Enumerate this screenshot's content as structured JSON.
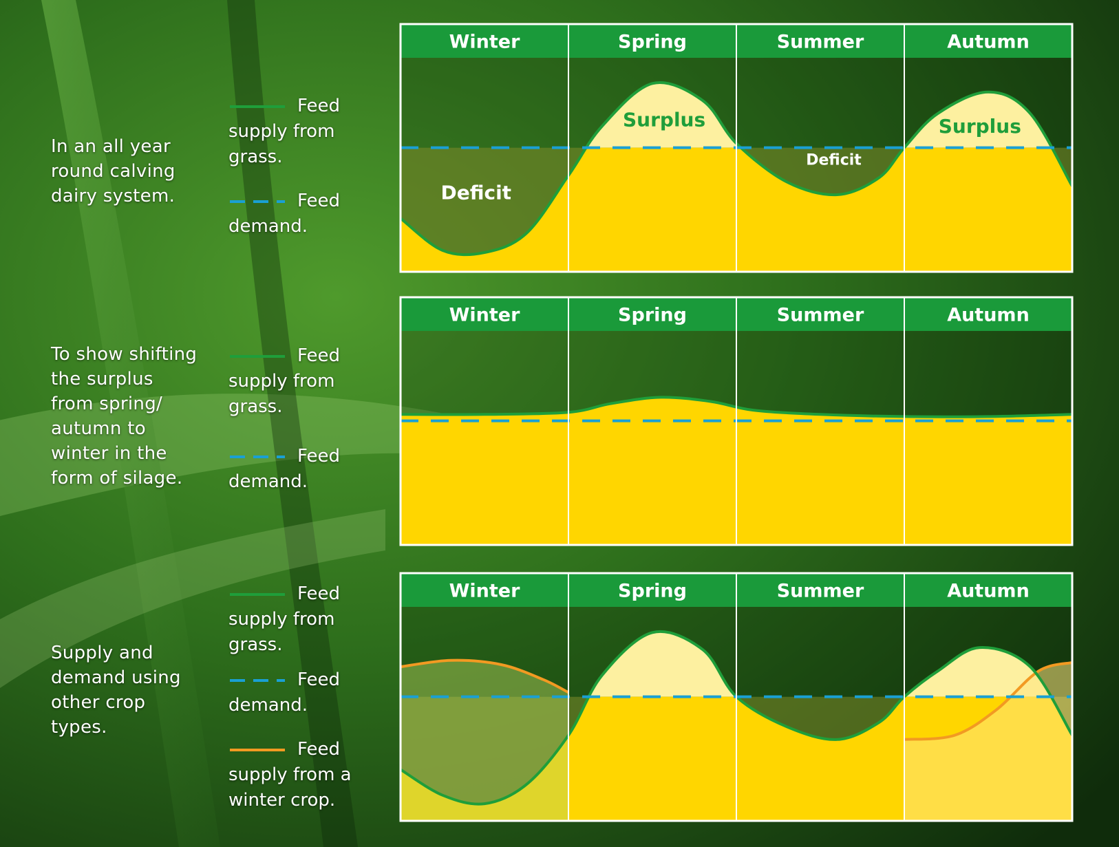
{
  "colors": {
    "header_green": "#1a9a3a",
    "supply_line": "#1f9e3a",
    "demand_line": "#1aa0d4",
    "winter_crop_line": "#f29a22",
    "fill_yellow": "#ffd600",
    "surplus_fill": "#fdf0a0",
    "frame": "#ffffff"
  },
  "rows": [
    {
      "description": [
        "In an all year",
        "round calving",
        "dairy system."
      ],
      "legend": [
        {
          "style": "solid-green",
          "lines": [
            "Feed",
            "supply from",
            "grass."
          ]
        },
        {
          "style": "dash-blue",
          "lines": [
            "Feed",
            "demand."
          ]
        }
      ]
    },
    {
      "description": [
        "To show shifting",
        "the surplus",
        "from spring/",
        "autumn to",
        "winter in the",
        "form of silage."
      ],
      "legend": [
        {
          "style": "solid-green",
          "lines": [
            "Feed",
            "supply from",
            "grass."
          ]
        },
        {
          "style": "dash-blue",
          "lines": [
            "Feed",
            "demand."
          ]
        }
      ]
    },
    {
      "description": [
        "Supply and",
        "demand using",
        "other crop",
        "types."
      ],
      "legend": [
        {
          "style": "solid-green",
          "lines": [
            "Feed",
            "supply from",
            "grass."
          ]
        },
        {
          "style": "dash-blue",
          "lines": [
            "Feed",
            "demand."
          ]
        },
        {
          "style": "solid-orange",
          "lines": [
            "Feed",
            "supply from a",
            "winter crop."
          ]
        }
      ]
    }
  ],
  "chart_data": [
    {
      "type": "area",
      "categories": [
        "Winter",
        "Spring",
        "Summer",
        "Autumn"
      ],
      "x_range": [
        0,
        4
      ],
      "y_range": [
        0,
        100
      ],
      "demand": 58,
      "series": [
        {
          "name": "Feed supply from grass.",
          "x": [
            0,
            0.25,
            0.5,
            0.75,
            1.0,
            1.2,
            1.5,
            1.8,
            2.0,
            2.3,
            2.6,
            2.85,
            3.0,
            3.2,
            3.5,
            3.75,
            4.0
          ],
          "y": [
            25,
            10,
            9,
            18,
            45,
            68,
            88,
            80,
            60,
            42,
            36,
            44,
            58,
            74,
            84,
            74,
            40
          ]
        }
      ],
      "annotations": [
        {
          "text": "Deficit",
          "x": 0.45,
          "y": 34
        },
        {
          "text": "Surplus",
          "x": 1.57,
          "y": 68
        },
        {
          "text": "Deficit",
          "x": 2.58,
          "y": 50
        },
        {
          "text": "Surplus",
          "x": 3.45,
          "y": 65
        }
      ]
    },
    {
      "type": "area",
      "categories": [
        "Winter",
        "Spring",
        "Summer",
        "Autumn"
      ],
      "x_range": [
        0,
        4
      ],
      "y_range": [
        0,
        100
      ],
      "demand": 58,
      "series": [
        {
          "name": "Feed supply from grass.",
          "x": [
            0,
            0.5,
            1.0,
            1.25,
            1.55,
            1.85,
            2.1,
            2.5,
            3.0,
            3.5,
            4.0
          ],
          "y": [
            61,
            61,
            62,
            66,
            69,
            67,
            63,
            61,
            60,
            60,
            61
          ]
        }
      ],
      "annotations": []
    },
    {
      "type": "area",
      "categories": [
        "Winter",
        "Spring",
        "Summer",
        "Autumn"
      ],
      "x_range": [
        0,
        4
      ],
      "y_range": [
        0,
        100
      ],
      "demand": 58,
      "series": [
        {
          "name": "Feed supply from grass.",
          "x": [
            0,
            0.25,
            0.5,
            0.75,
            1.0,
            1.2,
            1.5,
            1.8,
            2.0,
            2.3,
            2.6,
            2.85,
            3.0,
            3.2,
            3.45,
            3.75,
            4.0
          ],
          "y": [
            24,
            12,
            8,
            17,
            40,
            68,
            88,
            80,
            58,
            44,
            38,
            46,
            58,
            70,
            81,
            72,
            40
          ]
        },
        {
          "name": "Feed supply from a winter crop.",
          "x": [
            0,
            0.3,
            0.6,
            0.85,
            1.0
          ],
          "y": [
            72,
            75,
            73,
            66,
            60
          ],
          "x2": [
            3.0,
            3.3,
            3.55,
            3.8,
            4.0
          ],
          "y2": [
            38,
            40,
            52,
            70,
            74
          ]
        }
      ],
      "annotations": []
    }
  ]
}
